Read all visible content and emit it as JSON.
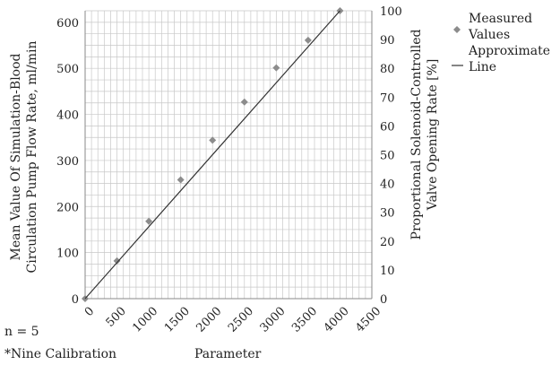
{
  "chart_data": {
    "type": "scatter",
    "left_axis": {
      "label_lines": [
        "Mean Value Of Simulation-Blood",
        "Circulation Pump Flow Rate, ml/min"
      ],
      "ylim": [
        0,
        625
      ],
      "ticks": [
        0,
        100,
        200,
        300,
        400,
        500,
        600
      ]
    },
    "right_axis": {
      "label_lines": [
        "Proportional Solenoid-Controlled",
        "Valve Opening Rate [%]"
      ],
      "ylim": [
        0,
        100
      ],
      "ticks": [
        0,
        10,
        20,
        30,
        40,
        50,
        60,
        70,
        80,
        90,
        100
      ]
    },
    "x_axis": {
      "label": "Parameter",
      "xlim": [
        0,
        4500
      ],
      "ticks": [
        0,
        500,
        1000,
        1500,
        2000,
        2500,
        3000,
        3500,
        4000,
        4500
      ]
    },
    "grid": true,
    "series": [
      {
        "name": "Measured Values",
        "kind": "scatter",
        "color": "#8c8c8c",
        "x": [
          0,
          500,
          1000,
          1500,
          2000,
          2500,
          3000,
          3500,
          4000
        ],
        "y": [
          0,
          82,
          168,
          258,
          344,
          427,
          501,
          561,
          625
        ]
      },
      {
        "name": "Approximate Line",
        "kind": "line",
        "color": "#333333",
        "x": [
          0,
          4000
        ],
        "y": [
          0,
          625
        ]
      }
    ],
    "legend": {
      "placement": "right",
      "items": [
        {
          "lines": [
            "Measured",
            "Values"
          ],
          "marker": "diamond"
        },
        {
          "lines": [
            "Approximate",
            "Line"
          ],
          "marker": "dash"
        }
      ]
    },
    "annotations": [
      "n = 5",
      "*Nine Calibration"
    ]
  }
}
